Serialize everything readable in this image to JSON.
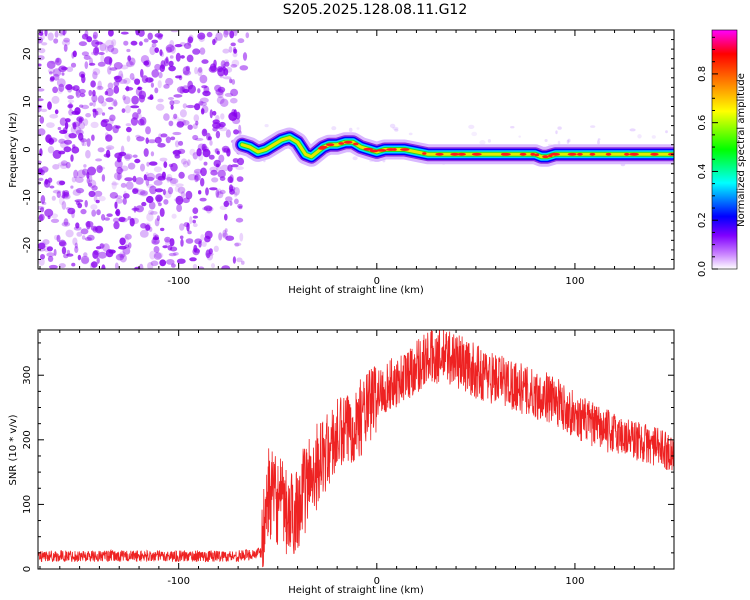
{
  "title": "S205.2025.128.08.11.G12",
  "chart_data": [
    {
      "type": "heatmap",
      "id": "spectrogram",
      "xlabel": "Height of straight line (km)",
      "ylabel": "Frequency (Hz)",
      "xlim": [
        -171,
        150
      ],
      "ylim": [
        -25,
        25
      ],
      "xticks": [
        -100,
        0,
        100
      ],
      "yticks": [
        -20,
        -10,
        0,
        10,
        20
      ],
      "colorbar": {
        "label": "Normalized spectral amplitude",
        "range": [
          0.0,
          0.98
        ],
        "ticks": [
          0.0,
          0.2,
          0.4,
          0.6,
          0.8
        ],
        "tick_labels": [
          "0.0",
          "0.2",
          "0.4",
          "0.6",
          "0.8"
        ],
        "colormap": [
          "#ffffff",
          "#8000ff",
          "#0000ff",
          "#00ffff",
          "#00ff00",
          "#ffff00",
          "#ff8000",
          "#ff0000",
          "#ff00ff"
        ]
      },
      "noise_region_x": [
        -171,
        -68
      ],
      "noise_color": "#8800ee",
      "ridge": {
        "x": [
          -68,
          -64,
          -60,
          -56,
          -52,
          -48,
          -44,
          -40,
          -36,
          -33,
          -30,
          -27,
          -24,
          -20,
          -16,
          -12,
          -8,
          -4,
          0,
          4,
          8,
          14,
          20,
          26,
          35,
          50,
          65,
          75,
          80,
          83,
          86,
          90,
          95,
          105,
          120,
          135,
          150
        ],
        "y": [
          1.0,
          0.5,
          -0.5,
          0.0,
          1.0,
          2.0,
          2.5,
          1.5,
          -1.0,
          -1.5,
          -0.5,
          0.5,
          1.0,
          1.0,
          1.5,
          1.5,
          0.5,
          0.0,
          -0.5,
          0.0,
          0.0,
          0.0,
          -0.5,
          -1.0,
          -1.0,
          -1.0,
          -1.0,
          -1.0,
          -1.0,
          -1.5,
          -1.5,
          -1.0,
          -1.0,
          -1.0,
          -1.0,
          -1.0,
          -1.0
        ]
      }
    },
    {
      "type": "line",
      "id": "snr",
      "xlabel": "Height of straight line (km)",
      "ylabel": "SNR (10 * v/v)",
      "xlim": [
        -171,
        150
      ],
      "ylim": [
        0,
        370
      ],
      "xticks": [
        -100,
        0,
        100
      ],
      "yticks": [
        0,
        100,
        200,
        300
      ],
      "color": "#ee2222",
      "series": [
        {
          "x": [
            -171,
            -150,
            -130,
            -110,
            -90,
            -70,
            -58,
            -55,
            -52,
            -48,
            -44,
            -40,
            -36,
            -32,
            -28,
            -24,
            -20,
            -16,
            -12,
            -8,
            -4,
            0,
            5,
            10,
            15,
            20,
            25,
            30,
            35,
            40,
            45,
            50,
            55,
            60,
            65,
            70,
            75,
            80,
            85,
            90,
            95,
            100,
            105,
            110,
            115,
            120,
            125,
            130,
            135,
            140,
            145,
            150
          ],
          "y": [
            20,
            20,
            20,
            20,
            20,
            20,
            25,
            120,
            110,
            100,
            75,
            100,
            125,
            155,
            170,
            185,
            205,
            210,
            225,
            235,
            250,
            270,
            282,
            290,
            300,
            315,
            325,
            330,
            330,
            325,
            315,
            305,
            300,
            295,
            290,
            285,
            275,
            270,
            268,
            260,
            250,
            238,
            230,
            222,
            215,
            210,
            205,
            200,
            195,
            190,
            185,
            180
          ]
        }
      ]
    }
  ]
}
